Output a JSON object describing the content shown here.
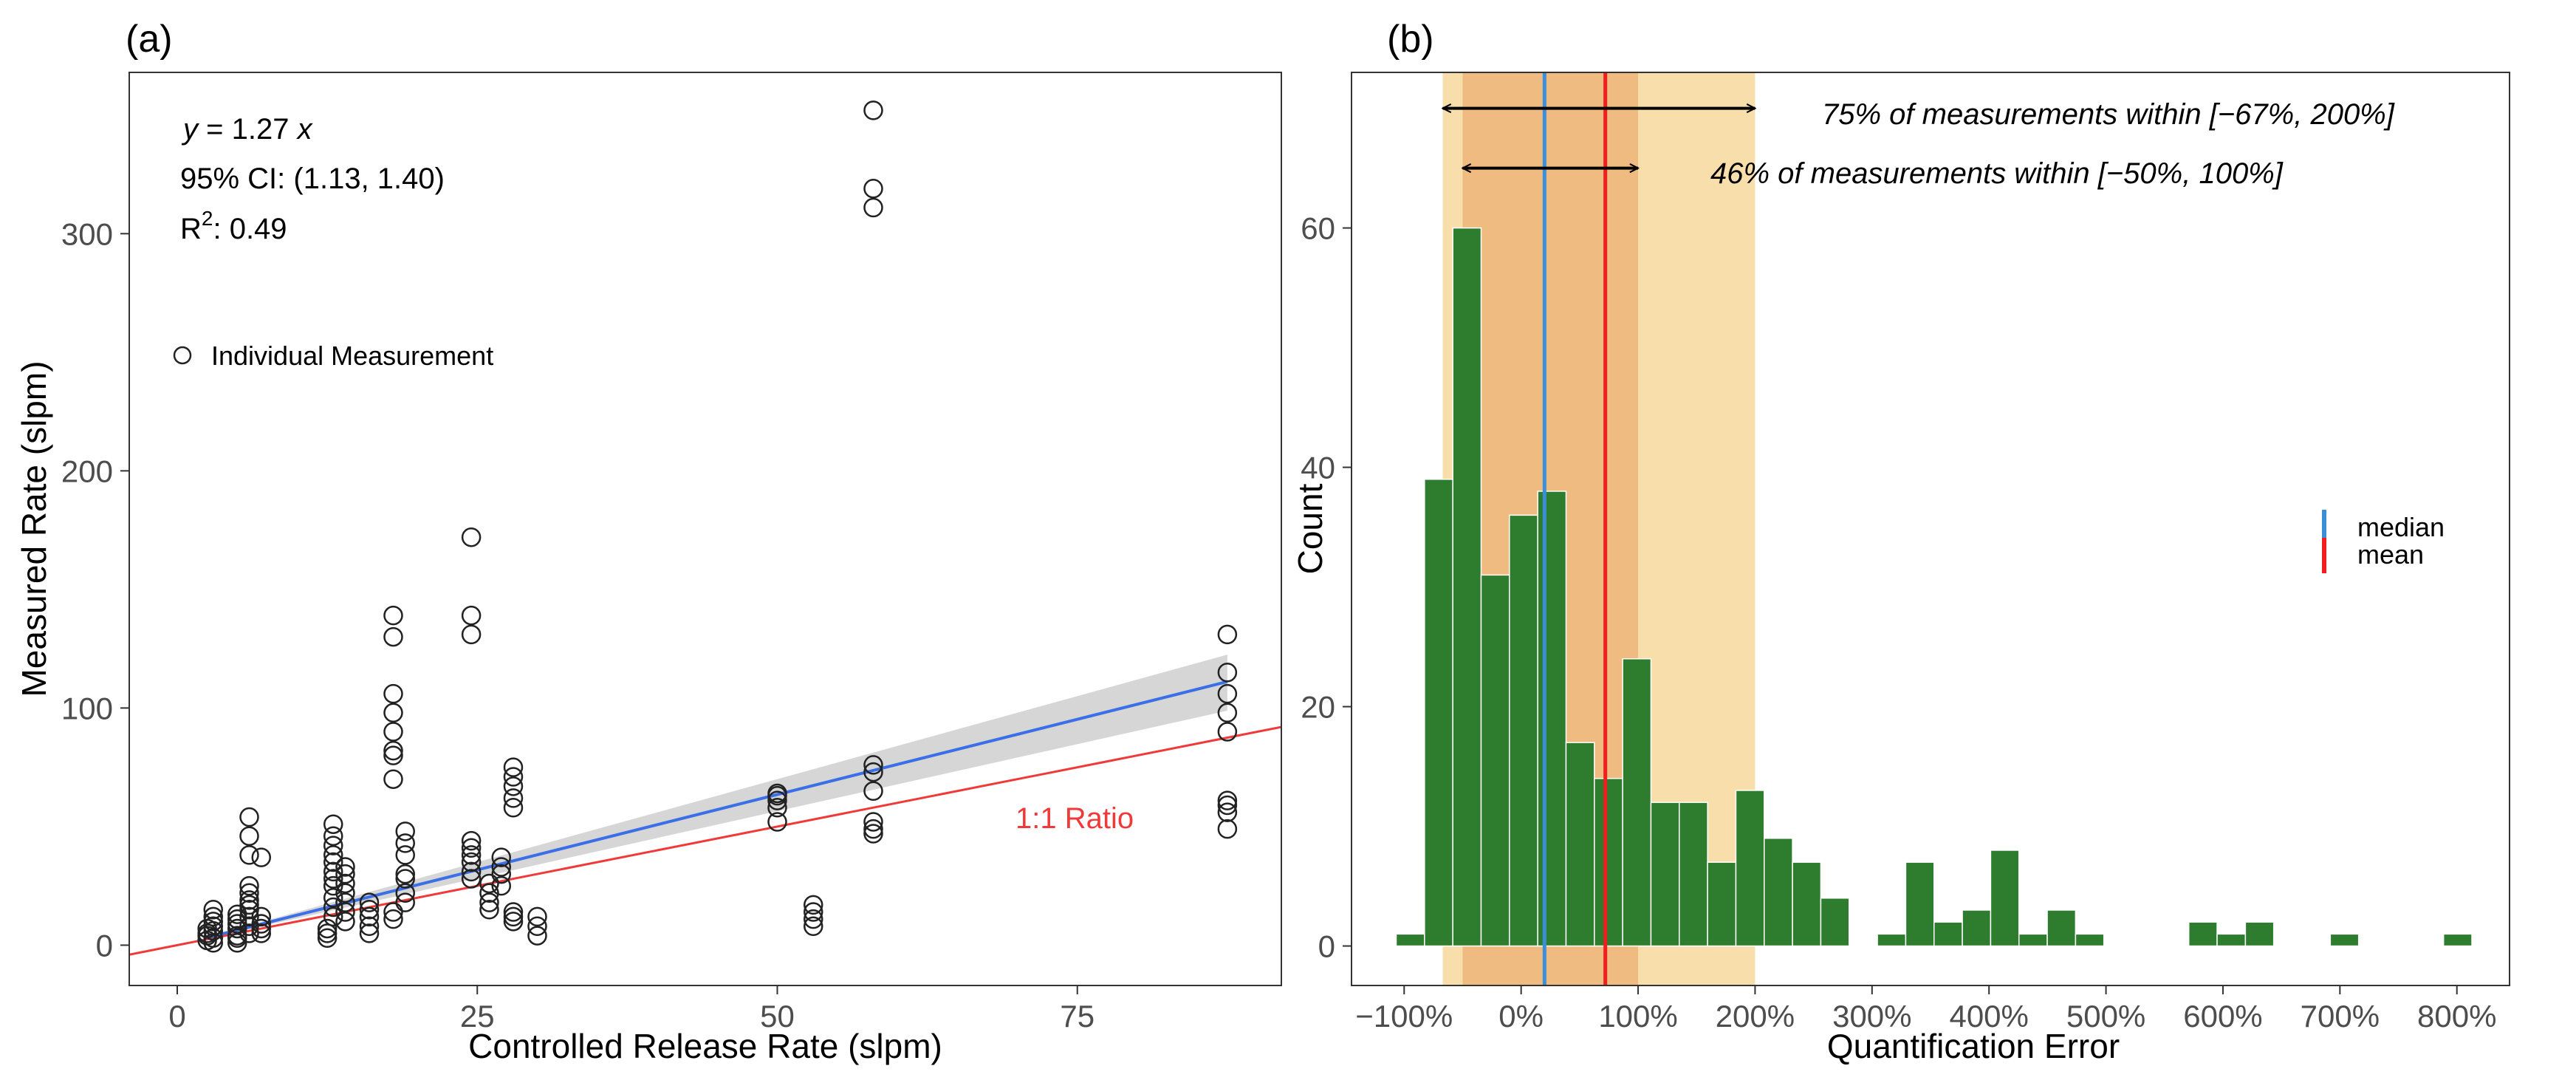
{
  "chart_data": [
    {
      "type": "scatter",
      "panel_label": "(a)",
      "xlabel": "Controlled Release Rate (slpm)",
      "ylabel": "Measured Rate (slpm)",
      "xlim": [
        -4,
        92
      ],
      "ylim": [
        -17,
        368
      ],
      "x_ticks": [
        0,
        25,
        50,
        75
      ],
      "y_ticks": [
        0,
        100,
        200,
        300
      ],
      "annotations": {
        "equation": "y = 1.27 x",
        "eq_lhs": "y",
        "eq_mid": " = 1.27 ",
        "eq_rhs": "x",
        "ci": "95% CI: (1.13, 1.40)",
        "r2_label": "R",
        "r2_sup": "2",
        "r2_value": ": 0.49",
        "ratio_label": "1:1 Ratio"
      },
      "legend": {
        "label": "Individual Measurement",
        "position": "top-left"
      },
      "fit_line": {
        "slope": 1.27,
        "x_range": [
          2.5,
          87.5
        ],
        "ci_slope": [
          1.13,
          1.4
        ],
        "color": "#3b6fe8"
      },
      "identity_line": {
        "slope": 1,
        "color": "#f03a3a"
      },
      "points": [
        [
          2.5,
          2
        ],
        [
          2.5,
          4
        ],
        [
          2.5,
          5
        ],
        [
          2.5,
          7
        ],
        [
          3,
          1
        ],
        [
          3,
          3
        ],
        [
          3,
          6
        ],
        [
          3,
          8
        ],
        [
          3,
          10
        ],
        [
          3,
          12
        ],
        [
          3,
          15
        ],
        [
          5,
          1
        ],
        [
          5,
          3
        ],
        [
          5,
          4
        ],
        [
          5,
          7
        ],
        [
          5,
          9
        ],
        [
          5,
          11
        ],
        [
          5,
          13
        ],
        [
          6,
          5
        ],
        [
          6,
          8
        ],
        [
          6,
          12
        ],
        [
          6,
          15
        ],
        [
          6,
          17
        ],
        [
          6,
          19
        ],
        [
          6,
          22
        ],
        [
          6,
          25
        ],
        [
          6,
          38
        ],
        [
          6,
          46
        ],
        [
          6,
          54
        ],
        [
          7,
          5
        ],
        [
          7,
          7
        ],
        [
          7,
          9
        ],
        [
          7,
          12
        ],
        [
          7,
          37
        ],
        [
          12.5,
          3
        ],
        [
          12.5,
          5
        ],
        [
          12.5,
          7
        ],
        [
          13,
          12
        ],
        [
          13,
          16
        ],
        [
          13,
          20
        ],
        [
          13,
          25
        ],
        [
          13,
          28
        ],
        [
          13,
          31
        ],
        [
          13,
          35
        ],
        [
          13,
          38
        ],
        [
          13,
          42
        ],
        [
          13,
          46
        ],
        [
          13,
          51
        ],
        [
          14,
          10
        ],
        [
          14,
          14
        ],
        [
          14,
          18
        ],
        [
          14,
          22
        ],
        [
          14,
          26
        ],
        [
          14,
          30
        ],
        [
          14,
          33
        ],
        [
          16,
          5
        ],
        [
          16,
          8
        ],
        [
          16,
          12
        ],
        [
          16,
          15
        ],
        [
          16,
          18
        ],
        [
          18,
          11
        ],
        [
          18,
          14
        ],
        [
          18,
          70
        ],
        [
          18,
          80
        ],
        [
          18,
          82
        ],
        [
          18,
          90
        ],
        [
          18,
          98
        ],
        [
          18,
          106
        ],
        [
          18,
          130
        ],
        [
          18,
          139
        ],
        [
          19,
          18
        ],
        [
          19,
          22
        ],
        [
          19,
          28
        ],
        [
          19,
          30
        ],
        [
          19,
          38
        ],
        [
          19,
          43
        ],
        [
          19,
          48
        ],
        [
          24.5,
          28
        ],
        [
          24.5,
          31
        ],
        [
          24.5,
          35
        ],
        [
          24.5,
          38
        ],
        [
          24.5,
          41
        ],
        [
          24.5,
          44
        ],
        [
          24.5,
          131
        ],
        [
          24.5,
          139
        ],
        [
          24.5,
          172
        ],
        [
          26,
          15
        ],
        [
          26,
          18
        ],
        [
          26,
          22
        ],
        [
          26,
          26
        ],
        [
          27,
          25
        ],
        [
          27,
          30
        ],
        [
          27,
          33
        ],
        [
          27,
          37
        ],
        [
          28,
          10
        ],
        [
          28,
          12
        ],
        [
          28,
          14
        ],
        [
          28,
          58
        ],
        [
          28,
          62
        ],
        [
          28,
          67
        ],
        [
          28,
          71
        ],
        [
          28,
          75
        ],
        [
          30,
          4
        ],
        [
          30,
          8
        ],
        [
          30,
          12
        ],
        [
          50,
          52
        ],
        [
          50,
          58
        ],
        [
          50,
          61
        ],
        [
          50,
          63
        ],
        [
          50,
          64
        ],
        [
          53,
          8
        ],
        [
          53,
          11
        ],
        [
          53,
          14
        ],
        [
          53,
          17
        ],
        [
          58,
          47
        ],
        [
          58,
          49
        ],
        [
          58,
          52
        ],
        [
          58,
          65
        ],
        [
          58,
          73
        ],
        [
          58,
          76
        ],
        [
          58,
          311
        ],
        [
          58,
          319
        ],
        [
          58,
          352
        ],
        [
          87.5,
          49
        ],
        [
          87.5,
          56
        ],
        [
          87.5,
          59
        ],
        [
          87.5,
          61
        ],
        [
          87.5,
          90
        ],
        [
          87.5,
          98
        ],
        [
          87.5,
          106
        ],
        [
          87.5,
          115
        ],
        [
          87.5,
          131
        ]
      ]
    },
    {
      "type": "bar",
      "subtype": "histogram",
      "panel_label": "(b)",
      "xlabel": "Quantification Error",
      "ylabel": "Count",
      "xlim": [
        -145,
        845
      ],
      "ylim": [
        -3.3,
        73
      ],
      "x_ticks": [
        -100,
        0,
        100,
        200,
        300,
        400,
        500,
        600,
        700,
        800
      ],
      "x_tick_labels": [
        "−100%",
        "0%",
        "100%",
        "200%",
        "300%",
        "400%",
        "500%",
        "600%",
        "700%",
        "800%"
      ],
      "y_ticks": [
        0,
        20,
        40,
        60
      ],
      "bin_width": 24.2,
      "bar_color": "#2e7d2e",
      "bins": [
        {
          "x": -106.8,
          "count": 1
        },
        {
          "x": -82.6,
          "count": 39
        },
        {
          "x": -58.4,
          "count": 60
        },
        {
          "x": -34.2,
          "count": 31
        },
        {
          "x": -10.0,
          "count": 36
        },
        {
          "x": 14.2,
          "count": 38
        },
        {
          "x": 38.4,
          "count": 17
        },
        {
          "x": 62.6,
          "count": 14
        },
        {
          "x": 86.8,
          "count": 24
        },
        {
          "x": 111.0,
          "count": 12
        },
        {
          "x": 135.2,
          "count": 12
        },
        {
          "x": 159.4,
          "count": 7
        },
        {
          "x": 183.6,
          "count": 13
        },
        {
          "x": 207.8,
          "count": 9
        },
        {
          "x": 232.0,
          "count": 7
        },
        {
          "x": 256.2,
          "count": 4
        },
        {
          "x": 280.4,
          "count": 0
        },
        {
          "x": 304.6,
          "count": 1
        },
        {
          "x": 328.8,
          "count": 7
        },
        {
          "x": 353.0,
          "count": 2
        },
        {
          "x": 377.2,
          "count": 3
        },
        {
          "x": 401.4,
          "count": 8
        },
        {
          "x": 425.6,
          "count": 1
        },
        {
          "x": 449.8,
          "count": 3
        },
        {
          "x": 474.0,
          "count": 1
        },
        {
          "x": 498.2,
          "count": 0
        },
        {
          "x": 522.4,
          "count": 0
        },
        {
          "x": 546.6,
          "count": 0
        },
        {
          "x": 570.8,
          "count": 2
        },
        {
          "x": 595.0,
          "count": 1
        },
        {
          "x": 619.2,
          "count": 2
        },
        {
          "x": 643.4,
          "count": 0
        },
        {
          "x": 667.6,
          "count": 0
        },
        {
          "x": 691.8,
          "count": 1
        },
        {
          "x": 716.0,
          "count": 0
        },
        {
          "x": 740.2,
          "count": 0
        },
        {
          "x": 764.4,
          "count": 0
        },
        {
          "x": 788.6,
          "count": 1
        }
      ],
      "bands": [
        {
          "range": [
            -67,
            200
          ],
          "color": "#f7deaa"
        },
        {
          "range": [
            -50,
            100
          ],
          "color": "#efbb80"
        }
      ],
      "median": 20,
      "mean": 72,
      "median_color": "#3a8fd8",
      "mean_color": "#f01e1e",
      "arrows": [
        {
          "range": [
            -67,
            200
          ],
          "y": 70,
          "label": "75% of measurements within [−67%, 200%]"
        },
        {
          "range": [
            -50,
            100
          ],
          "y": 65,
          "label": "46% of measurements within [−50%, 100%]"
        }
      ],
      "legend": {
        "position": "right",
        "items": [
          {
            "label": "median",
            "color": "#3a8fd8"
          },
          {
            "label": "mean",
            "color": "#f01e1e"
          }
        ]
      }
    }
  ]
}
